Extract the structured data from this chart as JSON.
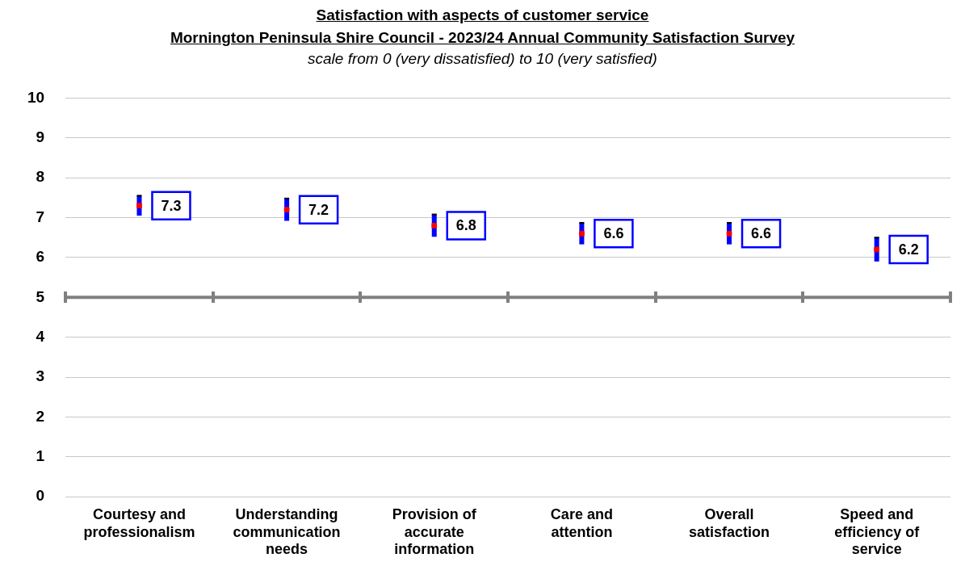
{
  "chart_data": {
    "type": "scatter",
    "title": "Satisfaction  with aspects of customer service",
    "subtitle": "Mornington Peninsula Shire Council - 2023/24 Annual Community Satisfaction  Survey",
    "annotations": [
      "scale from 0 (very dissatisfied) to 10 (very satisfied)"
    ],
    "categories": [
      "Courtesy and professionalism",
      "Understanding communication needs",
      "Provision of accurate information",
      "Care and attention",
      "Overall satisfaction",
      "Speed and efficiency of service"
    ],
    "series": [
      {
        "color": "#ff0000",
        "values": [
          7.3,
          7.2,
          6.8,
          6.6,
          6.6,
          6.2
        ],
        "errors": [
          0.25,
          0.28,
          0.28,
          0.27,
          0.27,
          0.3
        ]
      }
    ],
    "ylim": [
      0,
      10
    ],
    "yticks": [
      0,
      1,
      2,
      3,
      4,
      5,
      6,
      7,
      8,
      9,
      10
    ],
    "grid": "y",
    "marker": "square",
    "data_labels": true,
    "ref_lines": [
      {
        "axis": "y",
        "value": 5,
        "color": "#808080"
      }
    ]
  }
}
